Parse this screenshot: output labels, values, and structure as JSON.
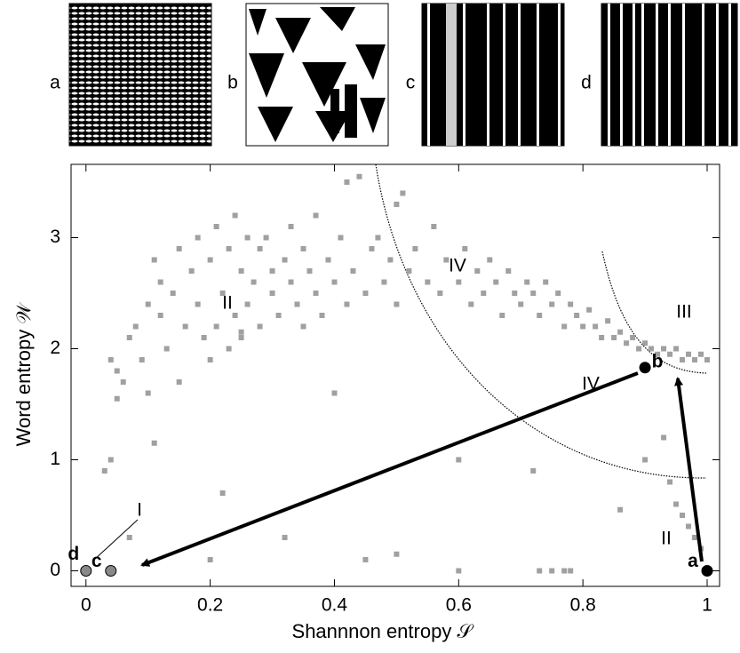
{
  "panels": [
    "a",
    "b",
    "c",
    "d"
  ],
  "chart_data": {
    "type": "scatter",
    "xlabel": "Shannnon entropy 𝒮",
    "ylabel": "Word entropy 𝒲",
    "xlim": [
      -0.024,
      1.02
    ],
    "ylim": [
      -0.14,
      3.66
    ],
    "xticks": [
      0,
      0.2,
      0.4,
      0.6,
      0.8,
      1
    ],
    "yticks": [
      0,
      1,
      2,
      3
    ],
    "color": "#a0a0a0",
    "x": [
      0.03,
      0.04,
      0.04,
      0.05,
      0.05,
      0.06,
      0.07,
      0.07,
      0.08,
      0.09,
      0.1,
      0.1,
      0.11,
      0.11,
      0.12,
      0.12,
      0.13,
      0.14,
      0.15,
      0.15,
      0.16,
      0.17,
      0.18,
      0.18,
      0.19,
      0.2,
      0.2,
      0.21,
      0.21,
      0.22,
      0.22,
      0.23,
      0.23,
      0.24,
      0.24,
      0.25,
      0.25,
      0.26,
      0.26,
      0.27,
      0.28,
      0.28,
      0.29,
      0.3,
      0.3,
      0.31,
      0.32,
      0.33,
      0.33,
      0.34,
      0.35,
      0.35,
      0.36,
      0.37,
      0.37,
      0.38,
      0.39,
      0.4,
      0.4,
      0.41,
      0.42,
      0.42,
      0.43,
      0.44,
      0.45,
      0.46,
      0.47,
      0.48,
      0.49,
      0.5,
      0.5,
      0.5,
      0.51,
      0.52,
      0.53,
      0.55,
      0.56,
      0.57,
      0.58,
      0.6,
      0.61,
      0.62,
      0.63,
      0.64,
      0.65,
      0.66,
      0.67,
      0.68,
      0.69,
      0.7,
      0.71,
      0.72,
      0.73,
      0.74,
      0.75,
      0.76,
      0.77,
      0.78,
      0.79,
      0.8,
      0.81,
      0.82,
      0.83,
      0.84,
      0.85,
      0.86,
      0.87,
      0.88,
      0.89,
      0.9,
      0.91,
      0.92,
      0.93,
      0.94,
      0.95,
      0.96,
      0.97,
      0.98,
      0.99,
      1.0,
      0.93,
      0.94,
      0.95,
      0.96,
      0.97,
      0.98,
      0.99,
      0.72,
      0.6,
      0.45,
      0.78,
      0.73,
      0.75,
      0.77,
      0.6,
      0.2,
      0.32,
      0.86,
      0.9,
      0.25
    ],
    "values": [
      0.9,
      1.0,
      1.9,
      1.8,
      1.55,
      1.7,
      2.1,
      0.3,
      2.2,
      1.9,
      2.4,
      1.6,
      2.8,
      1.15,
      2.3,
      2.6,
      2.0,
      2.5,
      2.9,
      1.7,
      2.2,
      2.7,
      3.0,
      2.4,
      2.1,
      2.8,
      1.9,
      3.1,
      2.2,
      2.5,
      0.7,
      2.0,
      2.9,
      3.2,
      2.3,
      2.7,
      2.1,
      3.0,
      2.4,
      2.6,
      2.9,
      2.2,
      3.0,
      2.5,
      2.7,
      2.3,
      2.8,
      2.6,
      3.1,
      2.4,
      2.9,
      2.2,
      2.7,
      3.2,
      2.5,
      2.3,
      2.8,
      2.6,
      1.6,
      3.0,
      2.4,
      3.5,
      2.7,
      3.55,
      2.5,
      2.9,
      3.0,
      2.6,
      2.8,
      2.4,
      3.3,
      0.15,
      3.4,
      2.7,
      2.9,
      2.6,
      3.1,
      2.5,
      2.8,
      2.6,
      2.9,
      2.4,
      2.7,
      2.5,
      2.8,
      2.6,
      2.3,
      2.7,
      2.5,
      2.4,
      2.6,
      2.5,
      2.3,
      2.6,
      2.4,
      2.5,
      2.2,
      2.4,
      2.3,
      2.2,
      2.35,
      2.2,
      2.1,
      2.25,
      2.1,
      2.15,
      2.05,
      2.1,
      2.0,
      2.05,
      2.0,
      1.95,
      2.0,
      1.95,
      2.0,
      1.9,
      1.95,
      1.9,
      1.95,
      1.9,
      1.2,
      0.8,
      0.6,
      0.5,
      0.4,
      0.3,
      0.2,
      0.9,
      1.0,
      0.1,
      0.0,
      0.0,
      0.0,
      0.0,
      0.0,
      0.1,
      0.3,
      0.55,
      1.0,
      2.15
    ],
    "points": [
      {
        "label": "a",
        "x": 1,
        "y": 0,
        "color": "#000000"
      },
      {
        "label": "b",
        "x": 0.9,
        "y": 1.83,
        "color": "#000000"
      },
      {
        "label": "c",
        "x": 0.04,
        "y": 0,
        "color": "#888888"
      },
      {
        "label": "d",
        "x": 0,
        "y": 0,
        "color": "#888888"
      }
    ],
    "annotations": [
      "II",
      "IV",
      "III",
      "IV",
      "II",
      "I"
    ]
  }
}
